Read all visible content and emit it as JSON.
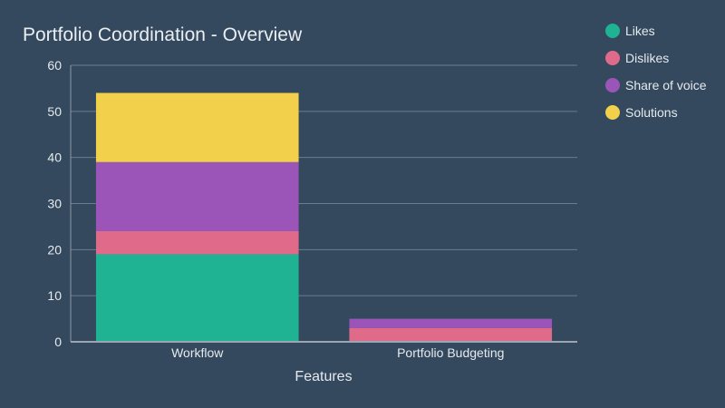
{
  "chart_data": {
    "type": "bar",
    "stacked": true,
    "title": "Portfolio Coordination - Overview",
    "xlabel": "Features",
    "ylabel": "",
    "categories": [
      "Workflow",
      "Portfolio Budgeting"
    ],
    "series": [
      {
        "name": "Likes",
        "values": [
          19,
          0
        ],
        "color": "#1fb394"
      },
      {
        "name": "Dislikes",
        "values": [
          5,
          3
        ],
        "color": "#e06a8a"
      },
      {
        "name": "Share of voice",
        "values": [
          15,
          2
        ],
        "color": "#9b55b8"
      },
      {
        "name": "Solutions",
        "values": [
          15,
          0
        ],
        "color": "#f2d04b"
      }
    ],
    "ylim": [
      0,
      60
    ],
    "yticks": [
      0,
      10,
      20,
      30,
      40,
      50,
      60
    ],
    "grid": true,
    "legend_position": "top-right"
  }
}
